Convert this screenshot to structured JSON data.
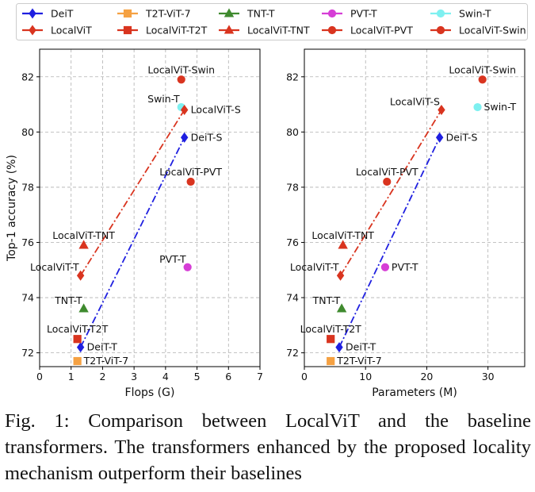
{
  "caption": "Fig. 1: Comparison between LocalViT and the baseline transformers. The transformers enhanced by the proposed locality mechanism outperform their baselines",
  "legend": [
    {
      "label": "DeiT",
      "color": "#1f1fe0",
      "marker": "diamond"
    },
    {
      "label": "T2T-ViT-7",
      "color": "#f5a142",
      "marker": "square"
    },
    {
      "label": "TNT-T",
      "color": "#3f8a2e",
      "marker": "triangle"
    },
    {
      "label": "PVT-T",
      "color": "#d63ed6",
      "marker": "circle"
    },
    {
      "label": "Swin-T",
      "color": "#7ef0f0",
      "marker": "circle"
    },
    {
      "label": "LocalViT",
      "color": "#d9341f",
      "marker": "diamond"
    },
    {
      "label": "LocalViT-T2T",
      "color": "#d9341f",
      "marker": "square"
    },
    {
      "label": "LocalViT-TNT",
      "color": "#d9341f",
      "marker": "triangle"
    },
    {
      "label": "LocalViT-PVT",
      "color": "#d9341f",
      "marker": "circle"
    },
    {
      "label": "LocalViT-Swin",
      "color": "#d9341f",
      "marker": "circle"
    }
  ],
  "chart_data": [
    {
      "type": "scatter",
      "xlabel": "Flops (G)",
      "ylabel": "Top-1 accuracy (%)",
      "xlim": [
        0,
        7
      ],
      "ylim": [
        71.5,
        83.0
      ],
      "xticks": [
        0,
        1,
        2,
        3,
        4,
        5,
        6,
        7
      ],
      "yticks": [
        72,
        74,
        76,
        78,
        80,
        82
      ],
      "grid": true,
      "points": [
        {
          "name": "DeiT-T",
          "label": "DeiT-T",
          "x": 1.3,
          "y": 72.2,
          "color": "#1f1fe0",
          "marker": "diamond",
          "label_pos": "right"
        },
        {
          "name": "DeiT-S",
          "label": "DeiT-S",
          "x": 4.6,
          "y": 79.8,
          "color": "#1f1fe0",
          "marker": "diamond",
          "label_pos": "right"
        },
        {
          "name": "T2T-ViT-7",
          "label": "T2T-ViT-7",
          "x": 1.2,
          "y": 71.7,
          "color": "#f5a142",
          "marker": "square",
          "label_pos": "right"
        },
        {
          "name": "TNT-T",
          "label": "TNT-T",
          "x": 1.4,
          "y": 73.6,
          "color": "#3f8a2e",
          "marker": "triangle",
          "label_pos": "above-left"
        },
        {
          "name": "PVT-T",
          "label": "PVT-T",
          "x": 4.7,
          "y": 75.1,
          "color": "#d63ed6",
          "marker": "circle",
          "label_pos": "above-left"
        },
        {
          "name": "Swin-T",
          "label": "Swin-T",
          "x": 4.5,
          "y": 80.9,
          "color": "#7ef0f0",
          "marker": "circle",
          "label_pos": "above-left"
        },
        {
          "name": "LocalViT-T",
          "label": "LocalViT-T",
          "x": 1.3,
          "y": 74.8,
          "color": "#d9341f",
          "marker": "diamond",
          "label_pos": "above-left"
        },
        {
          "name": "LocalViT-S",
          "label": "LocalViT-S",
          "x": 4.6,
          "y": 80.8,
          "color": "#d9341f",
          "marker": "diamond",
          "label_pos": "right"
        },
        {
          "name": "LocalViT-T2T",
          "label": "LocalViT-T2T",
          "x": 1.2,
          "y": 72.5,
          "color": "#d9341f",
          "marker": "square",
          "label_pos": "above"
        },
        {
          "name": "LocalViT-TNT",
          "label": "LocalViT-TNT",
          "x": 1.4,
          "y": 75.9,
          "color": "#d9341f",
          "marker": "triangle",
          "label_pos": "above"
        },
        {
          "name": "LocalViT-PVT",
          "label": "LocalViT-PVT",
          "x": 4.8,
          "y": 78.2,
          "color": "#d9341f",
          "marker": "circle",
          "label_pos": "above"
        },
        {
          "name": "LocalViT-Swin",
          "label": "LocalViT-Swin",
          "x": 4.5,
          "y": 81.9,
          "color": "#d9341f",
          "marker": "circle",
          "label_pos": "above"
        }
      ],
      "lines": [
        {
          "name": "DeiT",
          "x": [
            1.3,
            4.6
          ],
          "y": [
            72.2,
            79.8
          ],
          "color": "#1f1fe0",
          "style": "dashdot"
        },
        {
          "name": "LocalViT",
          "x": [
            1.3,
            4.6
          ],
          "y": [
            74.8,
            80.8
          ],
          "color": "#d9341f",
          "style": "dashdot"
        }
      ]
    },
    {
      "type": "scatter",
      "xlabel": "Parameters (M)",
      "ylabel": "",
      "xlim": [
        0,
        36
      ],
      "ylim": [
        71.5,
        83.0
      ],
      "xticks": [
        0,
        10,
        20,
        30
      ],
      "yticks": [
        72,
        74,
        76,
        78,
        80,
        82
      ],
      "grid": true,
      "points": [
        {
          "name": "DeiT-T",
          "label": "DeiT-T",
          "x": 5.7,
          "y": 72.2,
          "color": "#1f1fe0",
          "marker": "diamond",
          "label_pos": "right"
        },
        {
          "name": "DeiT-S",
          "label": "DeiT-S",
          "x": 22.1,
          "y": 79.8,
          "color": "#1f1fe0",
          "marker": "diamond",
          "label_pos": "right"
        },
        {
          "name": "T2T-ViT-7",
          "label": "T2T-ViT-7",
          "x": 4.3,
          "y": 71.7,
          "color": "#f5a142",
          "marker": "square",
          "label_pos": "right"
        },
        {
          "name": "TNT-T",
          "label": "TNT-T",
          "x": 6.1,
          "y": 73.6,
          "color": "#3f8a2e",
          "marker": "triangle",
          "label_pos": "above-left"
        },
        {
          "name": "PVT-T",
          "label": "PVT-T",
          "x": 13.2,
          "y": 75.1,
          "color": "#d63ed6",
          "marker": "circle",
          "label_pos": "right"
        },
        {
          "name": "Swin-T",
          "label": "Swin-T",
          "x": 28.3,
          "y": 80.9,
          "color": "#7ef0f0",
          "marker": "circle",
          "label_pos": "right"
        },
        {
          "name": "LocalViT-T",
          "label": "LocalViT-T",
          "x": 5.9,
          "y": 74.8,
          "color": "#d9341f",
          "marker": "diamond",
          "label_pos": "above-left"
        },
        {
          "name": "LocalViT-S",
          "label": "LocalViT-S",
          "x": 22.4,
          "y": 80.8,
          "color": "#d9341f",
          "marker": "diamond",
          "label_pos": "above-left"
        },
        {
          "name": "LocalViT-T2T",
          "label": "LocalViT-T2T",
          "x": 4.3,
          "y": 72.5,
          "color": "#d9341f",
          "marker": "square",
          "label_pos": "above"
        },
        {
          "name": "LocalViT-TNT",
          "label": "LocalViT-TNT",
          "x": 6.3,
          "y": 75.9,
          "color": "#d9341f",
          "marker": "triangle",
          "label_pos": "above"
        },
        {
          "name": "LocalViT-PVT",
          "label": "LocalViT-PVT",
          "x": 13.5,
          "y": 78.2,
          "color": "#d9341f",
          "marker": "circle",
          "label_pos": "above"
        },
        {
          "name": "LocalViT-Swin",
          "label": "LocalViT-Swin",
          "x": 29.1,
          "y": 81.9,
          "color": "#d9341f",
          "marker": "circle",
          "label_pos": "above"
        }
      ],
      "lines": [
        {
          "name": "DeiT",
          "x": [
            5.7,
            22.1
          ],
          "y": [
            72.2,
            79.8
          ],
          "color": "#1f1fe0",
          "style": "dashdot"
        },
        {
          "name": "LocalViT",
          "x": [
            5.9,
            22.4
          ],
          "y": [
            74.8,
            80.8
          ],
          "color": "#d9341f",
          "style": "dashdot"
        }
      ]
    }
  ]
}
